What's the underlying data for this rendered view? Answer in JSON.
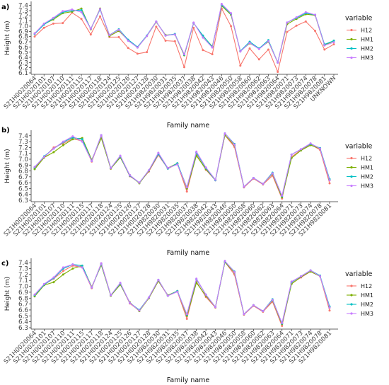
{
  "chart_data": [
    {
      "type": "line",
      "panel_tag": "a)",
      "xlabel": "Family name",
      "ylabel": "Height (m)",
      "ylim": [
        6.1,
        7.45
      ],
      "yticks": [
        "6.1",
        "6.2",
        "6.3",
        "6.4",
        "6.5",
        "6.6",
        "6.7",
        "6.8",
        "6.9",
        "7.0",
        "7.1",
        "7.2",
        "7.3",
        "7.4"
      ],
      "legend_title": "variable",
      "categories": [
        "S21H0020064",
        "S21H0020101",
        "S21H0020107",
        "S21H0020110",
        "S21H0020111",
        "S21H0020115",
        "S21H0020117",
        "S21H0020118",
        "S21H0020124",
        "S21H0020125",
        "S21H0020126",
        "S21H0020127",
        "S21H0020128",
        "S21H9820030",
        "S21H9820031",
        "S21H9820035",
        "S21H9820037",
        "S21H9820038",
        "S21H9820042",
        "S21H9820043",
        "S21H9820046",
        "S21H9820050",
        "S21H9820058",
        "S21H9820060",
        "S21H9820062",
        "S21H9820063",
        "S21H9820064",
        "S21H9820071",
        "S21H9820073",
        "S21H9820074",
        "S21H9820078",
        "S21H9820081",
        "UNKNOWN"
      ],
      "series": [
        {
          "name": "H12",
          "color": "#f8766d",
          "values": [
            6.8,
            6.97,
            7.05,
            7.06,
            7.26,
            7.14,
            6.84,
            7.19,
            6.79,
            6.79,
            6.58,
            6.47,
            6.5,
            6.99,
            6.72,
            6.71,
            6.21,
            6.97,
            6.54,
            6.46,
            7.34,
            7.0,
            6.24,
            6.57,
            6.36,
            6.55,
            6.12,
            6.89,
            7.01,
            7.09,
            6.91,
            6.55,
            6.65
          ]
        },
        {
          "name": "HM1",
          "color": "#7cae00",
          "values": [
            6.86,
            7.04,
            7.13,
            7.25,
            7.28,
            7.34,
            6.94,
            7.34,
            6.81,
            6.91,
            6.73,
            6.59,
            6.81,
            7.08,
            6.83,
            6.84,
            6.44,
            7.06,
            6.81,
            6.61,
            7.39,
            7.22,
            6.52,
            6.67,
            6.57,
            6.7,
            6.3,
            7.04,
            7.14,
            7.23,
            7.21,
            6.63,
            6.72
          ]
        },
        {
          "name": "HM2",
          "color": "#00bfc4",
          "values": [
            6.85,
            7.03,
            7.15,
            7.27,
            7.3,
            7.31,
            6.95,
            7.32,
            6.83,
            6.94,
            6.74,
            6.6,
            6.82,
            7.09,
            6.82,
            6.85,
            6.45,
            7.06,
            6.82,
            6.6,
            7.41,
            7.24,
            6.52,
            6.7,
            6.57,
            6.73,
            6.3,
            7.07,
            7.16,
            7.25,
            7.22,
            6.65,
            6.72
          ]
        },
        {
          "name": "HM3",
          "color": "#c77cff",
          "values": [
            6.86,
            7.05,
            7.16,
            7.29,
            7.32,
            7.27,
            6.95,
            7.33,
            6.83,
            6.93,
            6.72,
            6.59,
            6.81,
            7.09,
            6.82,
            6.84,
            6.46,
            7.07,
            6.78,
            6.59,
            7.43,
            7.25,
            6.51,
            6.68,
            6.56,
            6.71,
            6.3,
            7.07,
            7.17,
            7.27,
            7.22,
            6.63,
            6.69
          ]
        }
      ]
    },
    {
      "type": "line",
      "panel_tag": "b)",
      "xlabel": "Family name",
      "ylabel": "Height (m)",
      "ylim": [
        6.3,
        7.47
      ],
      "yticks": [
        "6.3",
        "6.4",
        "6.5",
        "6.6",
        "6.7",
        "6.8",
        "6.9",
        "7.0",
        "7.1",
        "7.2",
        "7.3",
        "7.4"
      ],
      "legend_title": "variable",
      "categories": [
        "S21H0020064",
        "S21H0020101",
        "S21H0020107",
        "S21H0020110",
        "S21H0020111",
        "S21H0020115",
        "S21H0020117",
        "S21H0020118",
        "S21H0020124",
        "S21H0020125",
        "S21H0020126",
        "S21H0020127",
        "S21H0020128",
        "S21H9820030",
        "S21H9820031",
        "S21H9820035",
        "S21H9820037",
        "S21H9820038",
        "S21H9820042",
        "S21H9820043",
        "S21H9820046",
        "S21H9820050",
        "S21H9820058",
        "S21H9820060",
        "S21H9820062",
        "S21H9820063",
        "S21H9820064",
        "S21H9820071",
        "S21H9820073",
        "S21H9820074",
        "S21H9820078",
        "S21H9820081"
      ],
      "series": [
        {
          "name": "H12",
          "color": "#f8766d",
          "values": [
            6.85,
            7.03,
            7.2,
            7.27,
            7.35,
            7.31,
            6.96,
            7.39,
            6.84,
            7.04,
            6.71,
            6.6,
            6.79,
            7.07,
            6.84,
            6.92,
            6.45,
            7.08,
            6.82,
            6.64,
            7.41,
            7.21,
            6.52,
            6.67,
            6.57,
            6.72,
            6.33,
            7.04,
            7.16,
            7.25,
            7.16,
            6.59
          ]
        },
        {
          "name": "HM1",
          "color": "#7cae00",
          "values": [
            6.83,
            7.03,
            7.12,
            7.24,
            7.34,
            7.36,
            6.99,
            7.36,
            6.84,
            7.03,
            6.73,
            6.59,
            6.8,
            7.09,
            6.85,
            6.93,
            6.5,
            7.06,
            6.83,
            6.65,
            7.41,
            7.24,
            6.53,
            6.68,
            6.58,
            6.75,
            6.35,
            7.02,
            7.15,
            7.24,
            7.18,
            6.64
          ]
        },
        {
          "name": "HM2",
          "color": "#00bfc4",
          "values": [
            6.86,
            7.05,
            7.18,
            7.29,
            7.37,
            7.34,
            6.97,
            7.41,
            6.85,
            7.05,
            6.72,
            6.6,
            6.81,
            7.09,
            6.84,
            6.93,
            6.52,
            7.11,
            6.85,
            6.64,
            7.44,
            7.26,
            6.53,
            6.68,
            6.58,
            6.77,
            6.37,
            7.08,
            7.17,
            7.26,
            7.19,
            6.66
          ]
        },
        {
          "name": "HM3",
          "color": "#c77cff",
          "values": [
            6.87,
            7.04,
            7.18,
            7.3,
            7.39,
            7.3,
            6.97,
            7.41,
            6.85,
            7.06,
            6.73,
            6.6,
            6.81,
            7.11,
            6.85,
            6.91,
            6.52,
            7.13,
            6.86,
            6.65,
            7.44,
            7.25,
            6.53,
            6.68,
            6.58,
            6.76,
            6.38,
            7.08,
            7.17,
            7.27,
            7.18,
            6.64
          ]
        }
      ]
    },
    {
      "type": "line",
      "panel_tag": "c)",
      "xlabel": "Family name",
      "ylabel": "Height (m)",
      "ylim": [
        6.3,
        7.45
      ],
      "yticks": [
        "6.3",
        "6.4",
        "6.5",
        "6.6",
        "6.7",
        "6.8",
        "6.9",
        "7.0",
        "7.1",
        "7.2",
        "7.3",
        "7.4"
      ],
      "legend_title": "variable",
      "categories": [
        "S21H0020064",
        "S21H0020101",
        "S21H0020107",
        "S21H0020110",
        "S21H0020111",
        "S21H0020115",
        "S21H0020117",
        "S21H0020118",
        "S21H0020124",
        "S21H0020125",
        "S21H0020126",
        "S21H0020127",
        "S21H0020128",
        "S21H9820030",
        "S21H9820031",
        "S21H9820035",
        "S21H9820037",
        "S21H9820038",
        "S21H9820042",
        "S21H9820043",
        "S21H9820046",
        "S21H9820050",
        "S21H9820058",
        "S21H9820060",
        "S21H9820062",
        "S21H9820063",
        "S21H9820064",
        "S21H9820071",
        "S21H9820073",
        "S21H9820074",
        "S21H9820078",
        "S21H9820081"
      ],
      "series": [
        {
          "name": "H12",
          "color": "#f8766d",
          "values": [
            6.86,
            7.03,
            7.13,
            7.26,
            7.35,
            7.32,
            6.97,
            7.39,
            6.85,
            7.04,
            6.71,
            6.59,
            6.8,
            7.09,
            6.84,
            6.91,
            6.45,
            7.08,
            6.82,
            6.64,
            7.41,
            7.2,
            6.52,
            6.67,
            6.57,
            6.74,
            6.33,
            7.05,
            7.15,
            7.25,
            7.17,
            6.59
          ]
        },
        {
          "name": "HM1",
          "color": "#7cae00",
          "values": [
            6.83,
            7.02,
            7.07,
            7.2,
            7.3,
            7.35,
            6.99,
            7.36,
            6.84,
            7.03,
            6.73,
            6.58,
            6.8,
            7.09,
            6.85,
            6.92,
            6.5,
            7.06,
            6.84,
            6.65,
            7.41,
            7.23,
            6.53,
            6.68,
            6.58,
            6.76,
            6.36,
            7.04,
            7.16,
            7.25,
            7.17,
            6.64
          ]
        },
        {
          "name": "HM2",
          "color": "#00bfc4",
          "values": [
            6.85,
            7.03,
            7.14,
            7.3,
            7.37,
            7.35,
            6.98,
            7.38,
            6.85,
            7.05,
            6.72,
            6.6,
            6.81,
            7.11,
            6.84,
            6.92,
            6.52,
            7.12,
            6.86,
            6.65,
            7.42,
            7.25,
            6.53,
            6.68,
            6.58,
            6.78,
            6.37,
            7.07,
            7.17,
            7.27,
            7.18,
            6.66
          ]
        },
        {
          "name": "HM3",
          "color": "#c77cff",
          "values": [
            6.86,
            7.04,
            7.15,
            7.32,
            7.37,
            7.32,
            6.98,
            7.39,
            6.85,
            7.06,
            6.72,
            6.59,
            6.81,
            7.11,
            6.84,
            6.91,
            6.53,
            7.13,
            6.86,
            6.65,
            7.43,
            7.24,
            6.53,
            6.68,
            6.58,
            6.77,
            6.38,
            7.08,
            7.17,
            7.27,
            7.17,
            6.64
          ]
        }
      ]
    }
  ]
}
